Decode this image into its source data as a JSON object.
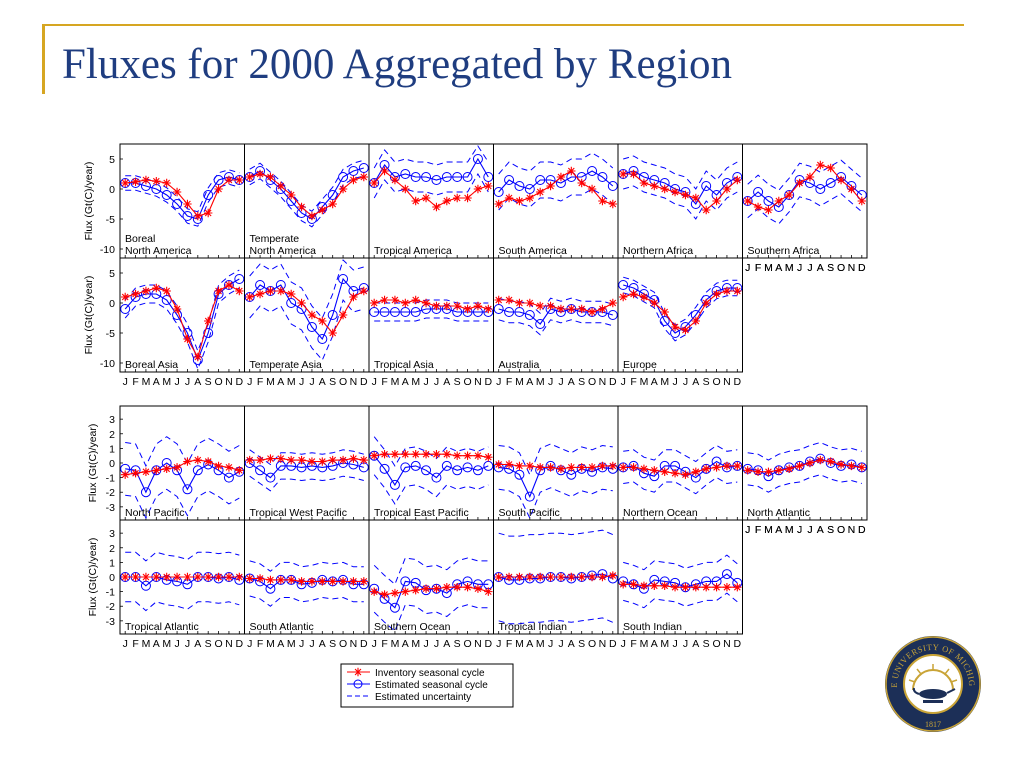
{
  "title": "Fluxes for 2000 Aggregated by Region",
  "logo": {
    "arc_text": "THE UNIVERSITY OF MICHIGAN",
    "year": "1817",
    "colors": {
      "navy": "#1c2f57",
      "gold": "#c9a437"
    }
  },
  "legend": [
    {
      "label": "Inventory seasonal cycle",
      "color": "#ff0000",
      "marker": "asterisk"
    },
    {
      "label": "Estimated seasonal cycle",
      "color": "#0000ff",
      "marker": "circle"
    },
    {
      "label": "Estimated uncertainty",
      "color": "#0000ff",
      "marker": "dashed"
    }
  ],
  "colors": {
    "inventory": "#ff0000",
    "estimated": "#0000ff",
    "uncertainty": "#0000ff",
    "title": "#1f3d80",
    "accent": "#d6a622"
  },
  "months": [
    "J",
    "F",
    "M",
    "A",
    "M",
    "J",
    "J",
    "A",
    "S",
    "O",
    "N",
    "D"
  ],
  "groups": [
    {
      "ylabel": "Flux (Gt(C)/year)",
      "yticks": [
        5,
        0,
        -5,
        -10
      ],
      "ylim": [
        -11.5,
        7.5
      ],
      "rows": [
        [
          {
            "label": [
              "Boreal",
              "North America"
            ]
          },
          {
            "label": [
              "Temperate",
              "North America"
            ]
          },
          {
            "label": [
              "Tropical America"
            ]
          },
          {
            "label": [
              "South America"
            ]
          },
          {
            "label": [
              "Northern Africa"
            ]
          },
          {
            "label": [
              "Southern Africa"
            ]
          }
        ],
        [
          {
            "label": [
              "Boreal Asia"
            ]
          },
          {
            "label": [
              "Temperate Asia"
            ]
          },
          {
            "label": [
              "Tropical Asia"
            ]
          },
          {
            "label": [
              "Australia"
            ]
          },
          {
            "label": [
              "Europe"
            ]
          }
        ]
      ]
    },
    {
      "ylabel": "Flux (Gt(C)/year)",
      "yticks": [
        3,
        2,
        1,
        0,
        -1,
        -2,
        -3
      ],
      "ylim": [
        -3.9,
        3.9
      ],
      "rows": [
        [
          {
            "label": [
              "North Pacific"
            ]
          },
          {
            "label": [
              "Tropical West Pacific"
            ]
          },
          {
            "label": [
              "Tropical East Pacific"
            ]
          },
          {
            "label": [
              "South Pacific"
            ]
          },
          {
            "label": [
              "Northern Ocean"
            ]
          },
          {
            "label": [
              "North Atlantic"
            ]
          }
        ],
        [
          {
            "label": [
              "Tropical Atlantic"
            ]
          },
          {
            "label": [
              "South Atlantic"
            ]
          },
          {
            "label": [
              "Southern Ocean"
            ]
          },
          {
            "label": [
              "Tropical Indian"
            ]
          },
          {
            "label": [
              "South Indian"
            ]
          }
        ]
      ]
    }
  ],
  "chart_data": {
    "type": "line",
    "title": "Fluxes for 2000 Aggregated by Region",
    "x": [
      "J",
      "F",
      "M",
      "A",
      "M",
      "J",
      "J",
      "A",
      "S",
      "O",
      "N",
      "D"
    ],
    "ylabel": "Flux (Gt(C)/year)",
    "series_names": [
      "Inventory seasonal cycle",
      "Estimated seasonal cycle",
      "Estimated uncertainty"
    ],
    "land_ylim": [
      -11.5,
      7.5
    ],
    "ocean_ylim": [
      -3.9,
      3.9
    ],
    "regions": [
      {
        "name": "Boreal North America",
        "inventory": [
          1,
          1.2,
          1.5,
          1.3,
          1,
          -0.5,
          -2.5,
          -4.5,
          -4,
          0,
          1.5,
          1.5
        ],
        "estimated": [
          1,
          1,
          0.5,
          0,
          -1,
          -2.5,
          -4.5,
          -5,
          -1,
          1.5,
          2,
          1.5
        ],
        "band": 1.2
      },
      {
        "name": "Temperate North America",
        "inventory": [
          2,
          2.5,
          2,
          0.5,
          -1,
          -3,
          -4.5,
          -3.5,
          -2.5,
          0,
          1.5,
          2
        ],
        "estimated": [
          2,
          3,
          1.5,
          0,
          -2,
          -4,
          -5,
          -3,
          -1,
          2,
          3,
          3.5
        ],
        "band": 1.3
      },
      {
        "name": "Tropical America",
        "inventory": [
          1,
          3,
          1.5,
          0,
          -2,
          -1.5,
          -3,
          -2,
          -1.5,
          -1.5,
          0,
          0.5
        ],
        "estimated": [
          1,
          4,
          2,
          2.5,
          2,
          2,
          1.5,
          2,
          2,
          2,
          5,
          2
        ],
        "band": 2.5
      },
      {
        "name": "South America",
        "inventory": [
          -2.5,
          -1.5,
          -2,
          -1.5,
          -0.5,
          0.5,
          2,
          3,
          1,
          0,
          -2,
          -2.5
        ],
        "estimated": [
          -0.5,
          1.5,
          0.5,
          0,
          1.5,
          1.5,
          1,
          2,
          2,
          3,
          2,
          0.5
        ],
        "band": 3
      },
      {
        "name": "Northern Africa",
        "inventory": [
          2.5,
          2.5,
          1,
          0.5,
          0,
          -0.5,
          -1,
          -1.5,
          -3.5,
          -2,
          0,
          1.5
        ],
        "estimated": [
          2.5,
          3,
          2,
          1.5,
          1,
          0,
          -0.5,
          -2.5,
          0.5,
          -1,
          1,
          2
        ],
        "band": 2.5
      },
      {
        "name": "Southern Africa",
        "inventory": [
          -2,
          -3,
          -3.5,
          -2,
          -1,
          1,
          2,
          4,
          3.5,
          1.5,
          0,
          -2
        ],
        "estimated": [
          -2,
          -0.5,
          -2,
          -3,
          -1,
          1.5,
          1,
          0,
          1,
          2,
          0.5,
          -1
        ],
        "band": 2.8
      },
      {
        "name": "Boreal Asia",
        "inventory": [
          1,
          1.5,
          2,
          2.5,
          2,
          -1,
          -6,
          -9,
          -3,
          2,
          3,
          2
        ],
        "estimated": [
          -1,
          1,
          1.5,
          1.5,
          0.5,
          -2,
          -5,
          -9.5,
          -5,
          1.5,
          3,
          4
        ],
        "band": 1.5
      },
      {
        "name": "Temperate Asia",
        "inventory": [
          1,
          1.5,
          2,
          2,
          1.5,
          0,
          -2,
          -3,
          -5,
          -2,
          1,
          2
        ],
        "estimated": [
          1,
          3,
          2,
          3,
          0,
          -1,
          -4,
          -6,
          -2,
          4,
          2,
          2.5
        ],
        "band": 3.5
      },
      {
        "name": "Tropical Asia",
        "inventory": [
          0,
          0.5,
          0.5,
          0,
          0.5,
          0,
          -0.5,
          -0.5,
          -0.5,
          -1,
          -0.5,
          -1
        ],
        "estimated": [
          -1.5,
          -1.5,
          -1.5,
          -1.5,
          -1.5,
          -1,
          -1,
          -1,
          -1.5,
          -1.5,
          -1.5,
          -1.5
        ],
        "band": 1.5
      },
      {
        "name": "Australia",
        "inventory": [
          0.5,
          0.5,
          0,
          0,
          -0.5,
          -0.5,
          -1,
          -1,
          -1,
          -1.5,
          -1,
          0
        ],
        "estimated": [
          -1,
          -1.5,
          -1.5,
          -2,
          -3.5,
          -1,
          -1.5,
          -1,
          -1.5,
          -1.5,
          -1.5,
          -2
        ],
        "band": 1.8
      },
      {
        "name": "Europe",
        "inventory": [
          1,
          1.5,
          1,
          0,
          -1.5,
          -4,
          -4.5,
          -3,
          0,
          1.5,
          2,
          2
        ],
        "estimated": [
          3,
          2.5,
          1.5,
          0.5,
          -3,
          -5,
          -4,
          -2,
          0.5,
          2,
          2.5,
          2.5
        ],
        "band": 1.3
      },
      {
        "name": "North Pacific",
        "inventory": [
          -0.8,
          -0.7,
          -0.6,
          -0.5,
          -0.4,
          -0.3,
          0.1,
          0.2,
          0.1,
          -0.2,
          -0.3,
          -0.5
        ],
        "estimated": [
          -0.4,
          -0.5,
          -2,
          -0.5,
          0,
          -0.5,
          -1.8,
          -0.5,
          -0.1,
          -0.5,
          -1,
          -0.6
        ],
        "band": 1.8
      },
      {
        "name": "Tropical West Pacific",
        "inventory": [
          0.2,
          0.2,
          0.3,
          0.3,
          0.2,
          0.2,
          0.1,
          0.1,
          0.2,
          0.2,
          0.3,
          0.2
        ],
        "estimated": [
          0,
          -0.5,
          -1,
          -0.2,
          -0.2,
          -0.3,
          -0.2,
          -0.3,
          -0.2,
          0,
          -0.1,
          -0.3
        ],
        "band": 0.9
      },
      {
        "name": "Tropical East Pacific",
        "inventory": [
          0.5,
          0.6,
          0.6,
          0.6,
          0.6,
          0.6,
          0.6,
          0.6,
          0.5,
          0.5,
          0.5,
          0.4
        ],
        "estimated": [
          0.5,
          -0.4,
          -1.5,
          -0.3,
          -0.2,
          -0.5,
          -1,
          -0.2,
          -0.5,
          -0.3,
          -0.5,
          -0.2
        ],
        "band": 1.3
      },
      {
        "name": "South Pacific",
        "inventory": [
          -0.1,
          -0.1,
          -0.2,
          -0.2,
          -0.3,
          -0.3,
          -0.4,
          -0.3,
          -0.3,
          -0.3,
          -0.2,
          -0.2
        ],
        "estimated": [
          -0.3,
          -0.4,
          -0.8,
          -2.3,
          -0.5,
          -0.2,
          -0.5,
          -0.8,
          -0.4,
          -0.6,
          -0.3,
          -0.4
        ],
        "band": 1.5
      },
      {
        "name": "Northern Ocean",
        "inventory": [
          -0.3,
          -0.3,
          -0.4,
          -0.5,
          -0.6,
          -0.7,
          -0.8,
          -0.6,
          -0.4,
          -0.3,
          -0.2,
          -0.2
        ],
        "estimated": [
          -0.3,
          -0.2,
          -0.7,
          -0.9,
          -0.2,
          -0.2,
          -0.6,
          -1,
          -0.4,
          0.1,
          -0.3,
          -0.2
        ],
        "band": 1.1
      },
      {
        "name": "North Atlantic",
        "inventory": [
          -0.5,
          -0.6,
          -0.6,
          -0.5,
          -0.4,
          -0.2,
          0,
          0.2,
          0.1,
          -0.1,
          -0.2,
          -0.3
        ],
        "estimated": [
          -0.4,
          -0.5,
          -0.9,
          -0.5,
          -0.3,
          -0.2,
          0.1,
          0.3,
          0,
          -0.2,
          -0.1,
          -0.3
        ],
        "band": 1.1
      },
      {
        "name": "Tropical Atlantic",
        "inventory": [
          0,
          0,
          0,
          0,
          0,
          0,
          0,
          0,
          0,
          0,
          0,
          0
        ],
        "estimated": [
          0,
          0,
          -0.6,
          0,
          -0.2,
          -0.3,
          -0.5,
          0,
          0,
          -0.1,
          0,
          -0.2
        ],
        "band": 1.7
      },
      {
        "name": "South Atlantic",
        "inventory": [
          -0.1,
          -0.1,
          -0.2,
          -0.2,
          -0.2,
          -0.3,
          -0.3,
          -0.3,
          -0.3,
          -0.3,
          -0.3,
          -0.3
        ],
        "estimated": [
          -0.1,
          -0.3,
          -0.8,
          -0.2,
          -0.2,
          -0.5,
          -0.4,
          -0.2,
          -0.3,
          -0.2,
          -0.5,
          -0.5
        ],
        "band": 1.2
      },
      {
        "name": "Southern Ocean",
        "inventory": [
          -1,
          -1.2,
          -1.1,
          -1,
          -0.9,
          -0.8,
          -0.8,
          -0.7,
          -0.7,
          -0.7,
          -0.8,
          -1
        ],
        "estimated": [
          -0.8,
          -1.5,
          -2.1,
          -0.3,
          -0.4,
          -0.9,
          -0.8,
          -1.1,
          -0.5,
          -0.3,
          -0.5,
          -0.5
        ],
        "band": 1.6
      },
      {
        "name": "Tropical Indian",
        "inventory": [
          0,
          0,
          0,
          0,
          0,
          0,
          0,
          0,
          0,
          0,
          0,
          0.1
        ],
        "estimated": [
          0,
          -0.2,
          -0.2,
          -0.1,
          -0.1,
          0,
          0,
          -0.1,
          0,
          0.1,
          0.2,
          -0.1
        ],
        "band": 3
      },
      {
        "name": "South Indian",
        "inventory": [
          -0.5,
          -0.5,
          -0.6,
          -0.6,
          -0.6,
          -0.7,
          -0.7,
          -0.7,
          -0.7,
          -0.7,
          -0.7,
          -0.7
        ],
        "estimated": [
          -0.3,
          -0.5,
          -0.8,
          -0.2,
          -0.3,
          -0.4,
          -0.7,
          -0.5,
          -0.3,
          -0.3,
          0.2,
          -0.4
        ],
        "band": 1.3
      }
    ]
  }
}
